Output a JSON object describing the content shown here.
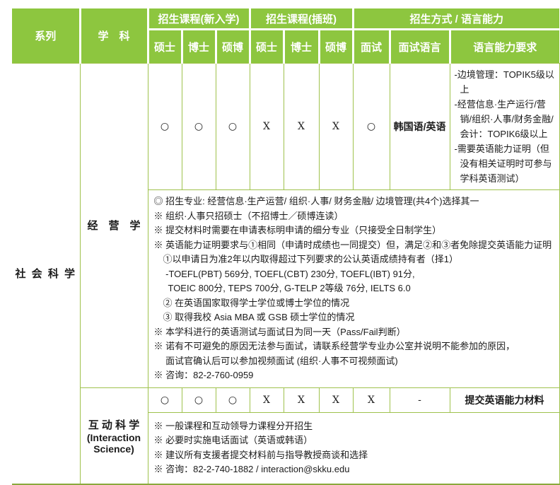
{
  "colors": {
    "header_green": "#8dc63f",
    "grid_green": "#9fc24d",
    "bottom_border_green": "#8aa93c",
    "header_text": "#ffffff",
    "body_text": "#1b1b1b"
  },
  "table": {
    "header": {
      "series": "系列",
      "department": "学　科",
      "groups": {
        "new_entry": "招生课程(新入学)",
        "transfer": "招生课程(插班)",
        "method_language": "招生方式 / 语言能力"
      },
      "sub": [
        "硕士",
        "博士",
        "硕博",
        "硕士",
        "博士",
        "硕博",
        "面试",
        "面试语言",
        "语言能力要求"
      ]
    },
    "series_cell": "社 会 科 学",
    "rows": [
      {
        "department": "经　营　学",
        "marks": [
          "○",
          "○",
          "○",
          "X",
          "X",
          "X",
          "○"
        ],
        "interview_language": "韩国语/英语",
        "language_requirements": [
          "-边境管理：TOPIK5级以上",
          "-经营信息·生产运行/营销/组织·人事/财务金融/会计：TOPIK6级以上",
          "-需要英语能力证明（但没有相关证明时可参与学科英语测试）"
        ],
        "notes": [
          "◎ 招生专业: 经营信息·生产运营/ 组织·人事/ 财务金融/ 边境管理(共4个)选择其一",
          "※ 组织·人事只招硕士（不招博士／硕博连读）",
          "※ 提交材料时需要在申请表标明申请的细分专业（只接受全日制学生）",
          "※ 英语能力证明要求与①相同（申请时成绩也一同提交）但，满足②和③者免除提交英语能力证明",
          "　①以申请日为准2年以内取得超过下列要求的公认英语成绩持有者（择1）",
          "　 -TOEFL(PBT) 569分, TOEFL(CBT) 230分, TOEFL(IBT) 91分,",
          "　  TOEIC 800分, TEPS 700分, G-TELP 2等级 76分, IELTS 6.0",
          "　② 在英语国家取得学士学位或博士学位的情况",
          "　③ 取得我校 Asia MBA 或 GSB 硕士学位的情况",
          "※ 本学科进行的英语测试与面试日为同一天（Pass/Fail判断）",
          "※ 诺有不可避免的原因无法参与面试，请联系经营学专业办公室并说明不能参加的原因，",
          "　 面试官确认后可以参加视频面试 (组织·人事不可视频面试)",
          "※ 咨询：82-2-760-0959"
        ]
      },
      {
        "department": "互 动 科 学",
        "department_en": "(Interaction Science)",
        "marks": [
          "○",
          "○",
          "○",
          "X",
          "X",
          "X",
          "X"
        ],
        "interview_language": "-",
        "language_requirement_bold": "提交英语能力材料",
        "notes": [
          "※ 一般课程和互动领导力课程分开招生",
          "※ 必要时实施电话面试（英语或韩语）",
          "※ 建议所有支援者提交材料前与指导教授商谈和选择",
          "※ 咨询：82-2-740-1882 / interaction@skku.edu"
        ]
      }
    ]
  }
}
